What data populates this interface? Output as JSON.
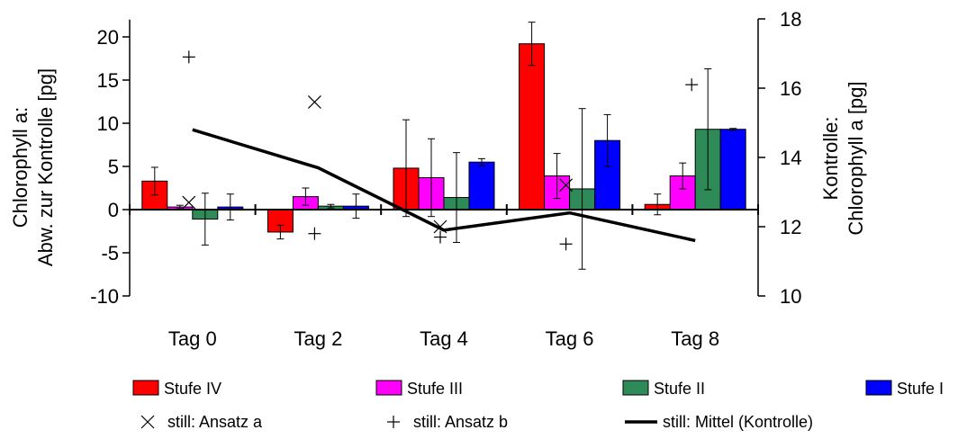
{
  "chart_data": {
    "type": "bar",
    "title": "",
    "categories": [
      "Tag 0",
      "Tag 2",
      "Tag 4",
      "Tag 6",
      "Tag 8"
    ],
    "ylabel_left": [
      "Chlorophyll a:",
      "Abw. zur Kontrolle [pg]"
    ],
    "ylabel_right": [
      "Kontrolle:",
      "Chlorophyll a [pg]"
    ],
    "ylim_left": [
      -10,
      22
    ],
    "yticks_left": [
      -10,
      -5,
      0,
      5,
      10,
      15,
      20
    ],
    "ytick_labels_left": [
      "-10",
      "-5",
      "0",
      "5",
      "10",
      "15",
      "20"
    ],
    "ylim_right": [
      10,
      18
    ],
    "yticks_right": [
      10,
      12,
      14,
      16,
      18
    ],
    "ytick_labels_right": [
      "10",
      "12",
      "14",
      "16",
      "18"
    ],
    "grid": false,
    "legend_position": "bottom",
    "bar_series": [
      {
        "name": "Stufe IV",
        "color": "#ff0000",
        "values": [
          3.3,
          -2.6,
          4.8,
          19.2,
          0.6
        ],
        "errors": [
          1.6,
          0.8,
          5.6,
          2.5,
          1.2
        ]
      },
      {
        "name": "Stufe III",
        "color": "#ff00ff",
        "values": [
          0.3,
          1.5,
          3.7,
          3.9,
          3.9
        ],
        "errors": [
          0.2,
          1.0,
          4.5,
          2.6,
          1.5
        ]
      },
      {
        "name": "Stufe II",
        "color": "#2e8b57",
        "values": [
          -1.1,
          0.4,
          1.4,
          2.4,
          9.3
        ],
        "errors": [
          3.0,
          0.2,
          5.2,
          9.3,
          7.0
        ]
      },
      {
        "name": "Stufe I",
        "color": "#0000ff",
        "values": [
          0.3,
          0.4,
          5.5,
          8.0,
          9.3
        ],
        "errors": [
          1.5,
          1.4,
          0.4,
          3.0,
          0.1
        ]
      }
    ],
    "marker_series": [
      {
        "name": "still: Ansatz a",
        "marker": "x",
        "values": [
          12.7,
          15.6,
          12.0,
          13.2,
          null
        ]
      },
      {
        "name": "still: Ansatz b",
        "marker": "+",
        "values": [
          16.9,
          11.8,
          11.7,
          11.5,
          16.1
        ]
      }
    ],
    "line_series": [
      {
        "name": "still: Mittel (Kontrolle)",
        "color": "#000000",
        "values": [
          14.8,
          13.7,
          11.9,
          12.4,
          11.6
        ]
      }
    ]
  }
}
